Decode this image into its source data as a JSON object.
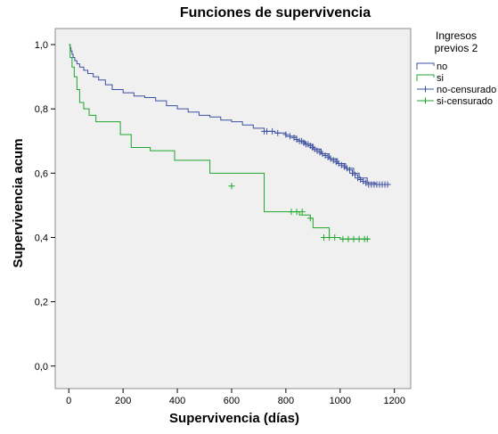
{
  "chart_data": {
    "type": "line",
    "subtype": "kaplan-meier-step",
    "title": "Funciones de supervivencia",
    "xlabel": "Supervivencia (días)",
    "ylabel": "Supervivencia acum",
    "xlim": [
      -50,
      1260
    ],
    "ylim": [
      -0.07,
      1.05
    ],
    "x_ticks": [
      0,
      200,
      400,
      600,
      800,
      1000,
      1200
    ],
    "x_tick_labels": [
      "0",
      "200",
      "400",
      "600",
      "800",
      "1000",
      "1200"
    ],
    "y_ticks": [
      0.0,
      0.2,
      0.4,
      0.6,
      0.8,
      1.0
    ],
    "y_tick_labels": [
      "0,0",
      "0,2",
      "0,4",
      "0,6",
      "0,8",
      "1,0"
    ],
    "grid": false,
    "background": "#f0f0f0",
    "legend": {
      "title_lines": [
        "Ingresos",
        "previos 2"
      ],
      "position": "right",
      "entries": [
        "no",
        "si",
        "no-censurado",
        "si-censurado"
      ]
    },
    "series": [
      {
        "name": "no",
        "color": "#3c50a0",
        "x": [
          0,
          5,
          8,
          12,
          16,
          22,
          30,
          40,
          55,
          70,
          90,
          110,
          135,
          160,
          200,
          240,
          280,
          320,
          360,
          400,
          440,
          480,
          520,
          560,
          600,
          640,
          680,
          720,
          760,
          800,
          840,
          870,
          900,
          930,
          960,
          990,
          1020,
          1050,
          1070,
          1100,
          1130,
          1160,
          1180
        ],
        "y": [
          1.0,
          0.99,
          0.98,
          0.97,
          0.96,
          0.95,
          0.94,
          0.93,
          0.92,
          0.91,
          0.9,
          0.89,
          0.875,
          0.86,
          0.85,
          0.84,
          0.835,
          0.825,
          0.81,
          0.8,
          0.79,
          0.78,
          0.775,
          0.765,
          0.76,
          0.75,
          0.74,
          0.73,
          0.725,
          0.715,
          0.7,
          0.69,
          0.675,
          0.66,
          0.645,
          0.63,
          0.615,
          0.6,
          0.585,
          0.57,
          0.565,
          0.565,
          0.565
        ]
      },
      {
        "name": "si",
        "color": "#1fa62e",
        "x": [
          0,
          5,
          12,
          20,
          30,
          40,
          55,
          75,
          100,
          190,
          230,
          300,
          390,
          520,
          720,
          850,
          890,
          900,
          960,
          1000,
          1110
        ],
        "y": [
          1.0,
          0.96,
          0.93,
          0.9,
          0.86,
          0.82,
          0.8,
          0.78,
          0.76,
          0.72,
          0.68,
          0.67,
          0.64,
          0.6,
          0.48,
          0.47,
          0.46,
          0.43,
          0.4,
          0.395,
          0.395
        ]
      },
      {
        "name": "no-censurado",
        "color": "#3c50a0",
        "x": [
          720,
          730,
          750,
          770,
          800,
          815,
          830,
          840,
          850,
          858,
          866,
          874,
          882,
          890,
          898,
          906,
          915,
          925,
          935,
          945,
          955,
          965,
          975,
          985,
          995,
          1005,
          1015,
          1025,
          1035,
          1045,
          1055,
          1065,
          1075,
          1085,
          1095,
          1105,
          1115,
          1125,
          1135,
          1145,
          1155,
          1165,
          1175
        ],
        "y": [
          0.73,
          0.73,
          0.73,
          0.725,
          0.72,
          0.715,
          0.71,
          0.705,
          0.7,
          0.7,
          0.695,
          0.69,
          0.69,
          0.685,
          0.68,
          0.675,
          0.67,
          0.665,
          0.66,
          0.655,
          0.65,
          0.645,
          0.64,
          0.635,
          0.63,
          0.625,
          0.62,
          0.615,
          0.61,
          0.6,
          0.595,
          0.585,
          0.58,
          0.575,
          0.57,
          0.565,
          0.565,
          0.565,
          0.565,
          0.565,
          0.565,
          0.565,
          0.565
        ]
      },
      {
        "name": "si-censurado",
        "color": "#1fa62e",
        "x": [
          600,
          820,
          840,
          860,
          890,
          940,
          960,
          980,
          1010,
          1030,
          1050,
          1070,
          1090,
          1100
        ],
        "y": [
          0.56,
          0.48,
          0.48,
          0.48,
          0.46,
          0.4,
          0.4,
          0.4,
          0.395,
          0.395,
          0.395,
          0.395,
          0.395,
          0.395
        ]
      }
    ]
  }
}
